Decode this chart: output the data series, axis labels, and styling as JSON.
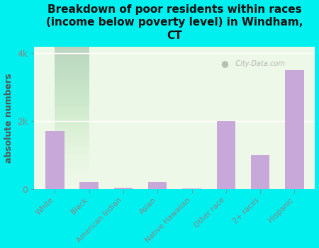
{
  "title": "Breakdown of poor residents within races\n(income below poverty level) in Windham,\nCT",
  "categories": [
    "White",
    "Black",
    "American Indian",
    "Asian",
    "Native Hawaiian",
    "Other race",
    "2+ races",
    "Hispanic"
  ],
  "values": [
    1700,
    200,
    30,
    200,
    10,
    2000,
    1000,
    3500
  ],
  "bar_color": "#c8a8d8",
  "ylabel": "absolute numbers",
  "ylim": [
    0,
    4200
  ],
  "yticks": [
    0,
    2000,
    4000
  ],
  "ytick_labels": [
    "0",
    "2k",
    "4k"
  ],
  "background_color": "#00efef",
  "plot_bg_color": "#e8f5e0",
  "title_fontsize": 11,
  "ylabel_fontsize": 9,
  "watermark": "City-Data.com"
}
